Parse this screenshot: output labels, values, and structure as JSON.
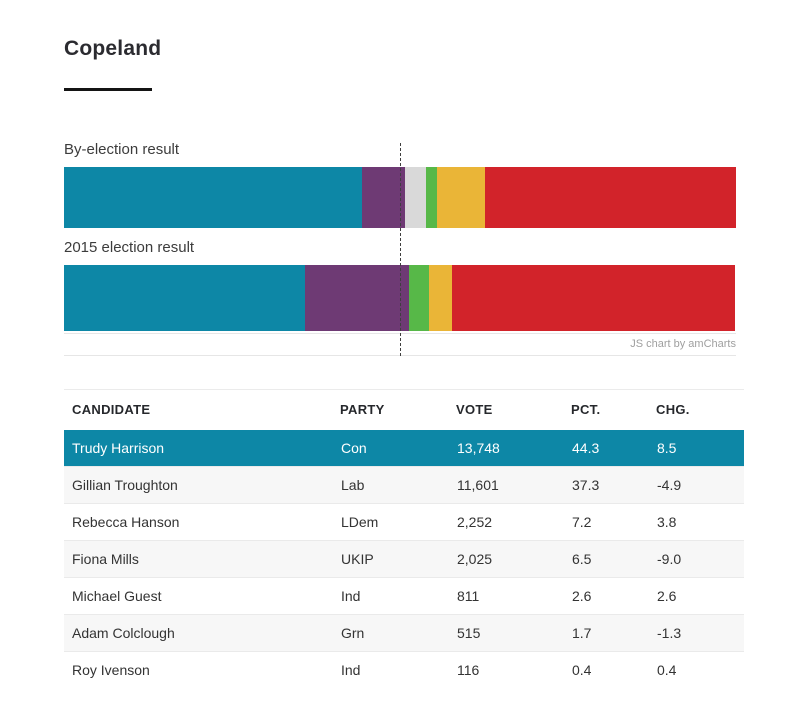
{
  "title": "Copeland",
  "chart_data": {
    "type": "bar",
    "stacked": true,
    "orientation": "horizontal",
    "title": "",
    "xlabel": "",
    "ylabel": "",
    "xlim": [
      0,
      100
    ],
    "grid": false,
    "legend": false,
    "reference_line_x": 50,
    "attribution": "JS chart by amCharts",
    "categories": [
      "By-election result",
      "2015 election result"
    ],
    "series": [
      {
        "name": "Con",
        "color": "#0d87a6",
        "values": [
          44.3,
          35.8
        ]
      },
      {
        "name": "UKIP",
        "color": "#6e3a74",
        "values": [
          6.5,
          15.5
        ]
      },
      {
        "name": "Ind",
        "color": "#d9d9d9",
        "values": [
          3.0,
          0
        ]
      },
      {
        "name": "Grn",
        "color": "#57b848",
        "values": [
          1.7,
          3.0
        ]
      },
      {
        "name": "LDem",
        "color": "#eab537",
        "values": [
          7.2,
          3.4
        ]
      },
      {
        "name": "Lab",
        "color": "#d2232a",
        "values": [
          37.3,
          42.2
        ]
      }
    ]
  },
  "table": {
    "headers": [
      "CANDIDATE",
      "PARTY",
      "VOTE",
      "PCT.",
      "CHG."
    ],
    "rows": [
      {
        "candidate": "Trudy Harrison",
        "party": "Con",
        "vote": "13,748",
        "pct": "44.3",
        "chg": "8.5",
        "highlight": true
      },
      {
        "candidate": "Gillian Troughton",
        "party": "Lab",
        "vote": "11,601",
        "pct": "37.3",
        "chg": "-4.9",
        "highlight": false
      },
      {
        "candidate": "Rebecca Hanson",
        "party": "LDem",
        "vote": "2,252",
        "pct": "7.2",
        "chg": "3.8",
        "highlight": false
      },
      {
        "candidate": "Fiona Mills",
        "party": "UKIP",
        "vote": "2,025",
        "pct": "6.5",
        "chg": "-9.0",
        "highlight": false
      },
      {
        "candidate": "Michael Guest",
        "party": "Ind",
        "vote": "811",
        "pct": "2.6",
        "chg": "2.6",
        "highlight": false
      },
      {
        "candidate": "Adam Colclough",
        "party": "Grn",
        "vote": "515",
        "pct": "1.7",
        "chg": "-1.3",
        "highlight": false
      },
      {
        "candidate": "Roy Ivenson",
        "party": "Ind",
        "vote": "116",
        "pct": "0.4",
        "chg": "0.4",
        "highlight": false
      }
    ]
  },
  "colors": {
    "highlight_row": "#0d87a6",
    "stripe_row": "#f7f7f7",
    "border": "#eaeaea",
    "reference_line": "#3f3f3f",
    "title_text": "#2b2b30",
    "credit_text": "#9f9f9f"
  }
}
